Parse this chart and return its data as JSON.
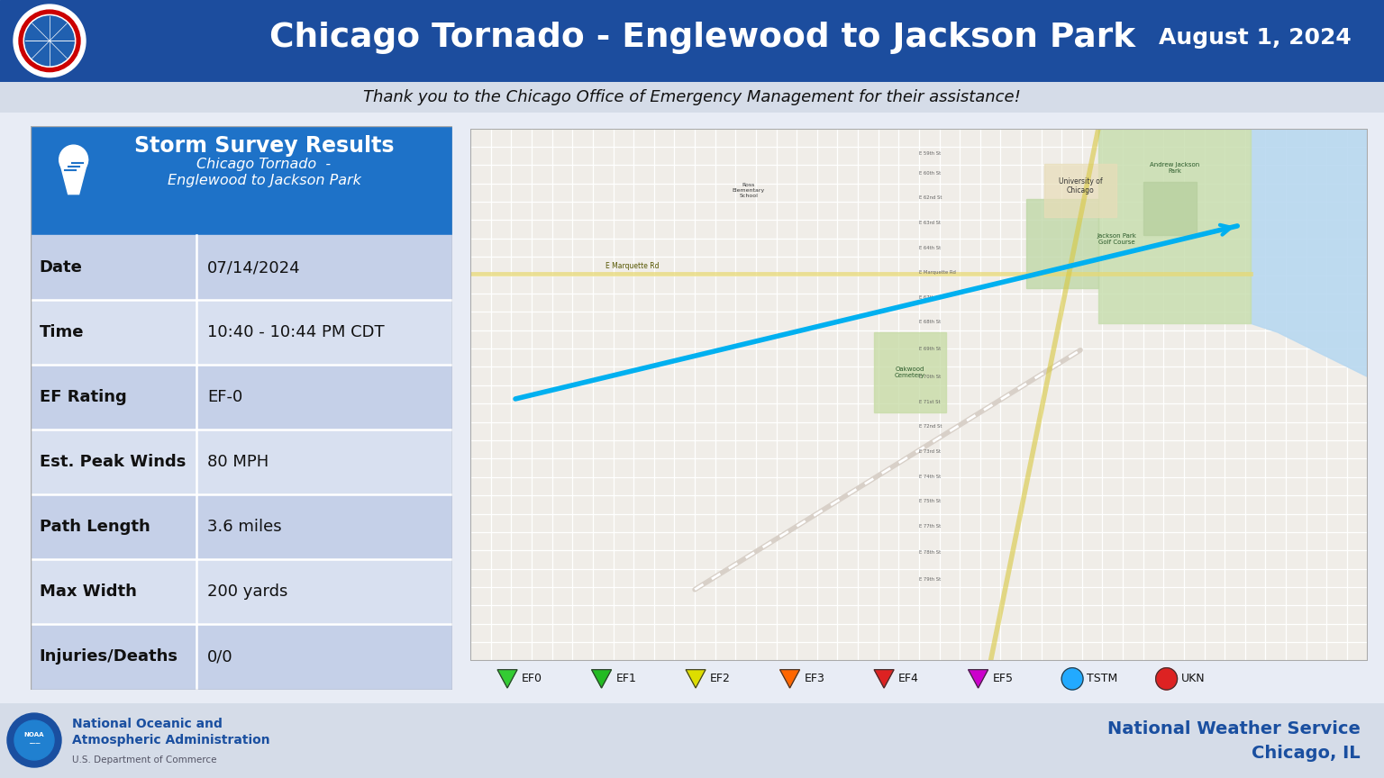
{
  "title": "Chicago Tornado - Englewood to Jackson Park",
  "date_label": "August 1, 2024",
  "subtitle": "Thank you to the Chicago Office of Emergency Management for their assistance!",
  "header_bg": "#1c4d9e",
  "subtitle_bg": "#d5dce8",
  "table_header_bg": "#1e72c8",
  "table_header_title": "Storm Survey Results",
  "table_header_subtitle1": "Chicago Tornado  -",
  "table_header_subtitle2": "Englewood to Jackson Park",
  "table_rows": [
    {
      "label": "Date",
      "value": "07/14/2024"
    },
    {
      "label": "Time",
      "value": "10:40 - 10:44 PM CDT"
    },
    {
      "label": "EF Rating",
      "value": "EF-0"
    },
    {
      "label": "Est. Peak Winds",
      "value": "80 MPH"
    },
    {
      "label": "Path Length",
      "value": "3.6 miles"
    },
    {
      "label": "Max Width",
      "value": "200 yards"
    },
    {
      "label": "Injuries/Deaths",
      "value": "0/0"
    }
  ],
  "row_color_even": "#c5d0e8",
  "row_color_odd": "#d8e0f0",
  "footer_bg": "#d5dce8",
  "footer_left1": "National Oceanic and",
  "footer_left2": "Atmospheric Administration",
  "footer_left3": "U.S. Department of Commerce",
  "footer_right1": "National Weather Service",
  "footer_right2": "Chicago, IL",
  "legend_labels": [
    "EF0",
    "EF1",
    "EF2",
    "EF3",
    "EF4",
    "EF5",
    "TSTM",
    "UKN"
  ],
  "legend_colors": [
    "#00cc00",
    "#00cc00",
    "#ffff00",
    "#ff6600",
    "#cc0000",
    "#cc00cc",
    "#00aaff",
    "#cc0000"
  ],
  "legend_shapes": [
    "tri",
    "tri",
    "tri",
    "tri",
    "tri",
    "tri",
    "circle",
    "circle"
  ],
  "map_bg": "#f0ede8",
  "map_road_color": "#ffffff",
  "map_grid_color": "#e8e4dc",
  "map_park_color": "#c8e0b0",
  "map_water_color": "#b8d8f0",
  "tornado_path_color": "#00b0f0",
  "main_bg": "#e8ecf5"
}
